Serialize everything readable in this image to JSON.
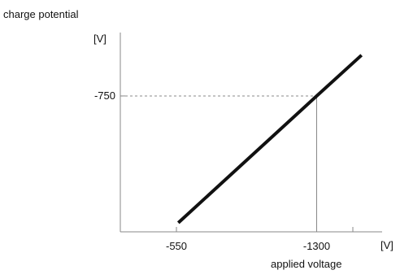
{
  "chart_data": {
    "type": "line",
    "title": "",
    "ylabel": "charge potential",
    "yunit": "[V]",
    "xlabel": "applied voltage",
    "xunit": "[V]",
    "x_ticks": [
      {
        "value": -550,
        "label": "-550"
      },
      {
        "value": -1300,
        "label": "-1300"
      }
    ],
    "y_ticks": [
      {
        "value": -750,
        "label": "-750"
      }
    ],
    "series": [
      {
        "x": [
          -560,
          -1300,
          -1540
        ],
        "y": [
          -50,
          -750,
          -975
        ]
      }
    ],
    "reference_point": {
      "x": -1300,
      "y": -750
    },
    "xlim": [
      -250,
      -1650
    ],
    "ylim": [
      0,
      -1100
    ],
    "grid": false,
    "colors": {
      "line": "#111111",
      "axis": "#888888",
      "guide": "#888888"
    }
  }
}
